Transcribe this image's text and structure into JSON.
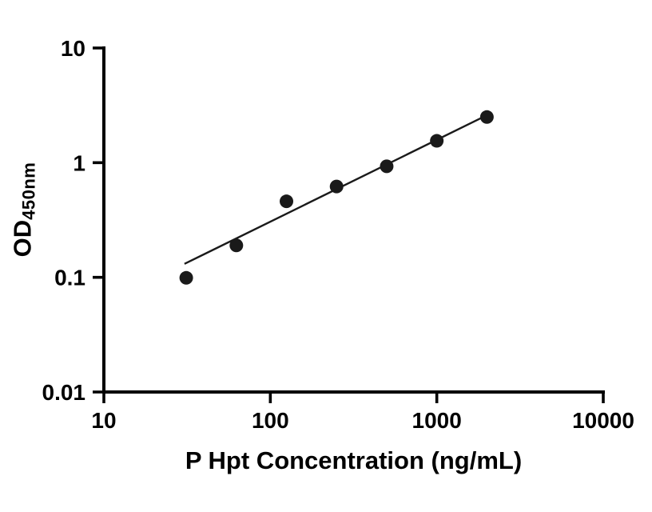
{
  "chart_data": {
    "type": "scatter",
    "title": "",
    "xlabel": "P Hpt Concentration (ng/mL)",
    "ylabel": "OD",
    "ylabel_sub": "450nm",
    "xscale": "log",
    "yscale": "log",
    "xlim": [
      10,
      10000
    ],
    "ylim": [
      0.01,
      10
    ],
    "grid": false,
    "legend": "none",
    "x_ticks": [
      10,
      100,
      1000,
      10000
    ],
    "x_tick_labels": [
      "10",
      "100",
      "1000",
      "10000"
    ],
    "y_ticks": [
      0.01,
      0.1,
      1,
      10
    ],
    "y_tick_labels": [
      "0.01",
      "0.1",
      "1",
      "10"
    ],
    "points": {
      "x": [
        31.25,
        62.5,
        125,
        250,
        500,
        1000,
        2000
      ],
      "y": [
        0.099,
        0.19,
        0.46,
        0.62,
        0.93,
        1.55,
        2.5
      ]
    },
    "fit_line": {
      "x": [
        30.5,
        2060
      ],
      "y": [
        0.131,
        2.65
      ]
    },
    "marker_color": "#1a1a1a",
    "line_color": "#1a1a1a",
    "axis_color": "#000000",
    "background_color": "#ffffff"
  }
}
